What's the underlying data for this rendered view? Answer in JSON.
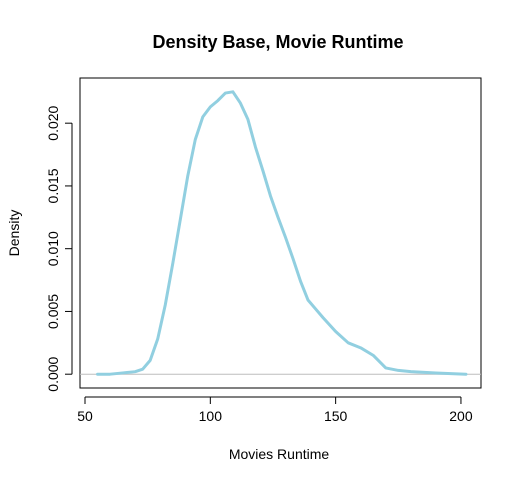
{
  "chart_data": {
    "type": "line",
    "title": "Density Base, Movie Runtime",
    "xlabel": "Movies Runtime",
    "ylabel": "Density",
    "xlim": [
      48,
      208
    ],
    "ylim": [
      -0.0011,
      0.0236
    ],
    "x_ticks": [
      "50",
      "100",
      "150",
      "200"
    ],
    "x_tick_values": [
      50,
      100,
      150,
      200
    ],
    "y_ticks": [
      "0.000",
      "0.005",
      "0.010",
      "0.015",
      "0.020"
    ],
    "y_tick_values": [
      0.0,
      0.005,
      0.01,
      0.015,
      0.02
    ],
    "grid": false,
    "baseline": 0,
    "line_color": "#91cfe0",
    "baseline_color": "#bebebe",
    "series": [
      {
        "x": [
          55,
          60,
          65,
          70,
          73,
          76,
          79,
          82,
          85,
          88,
          91,
          94,
          97,
          100,
          103,
          106,
          109,
          112,
          115,
          118,
          121,
          124,
          127,
          130,
          133,
          136,
          139,
          142,
          145,
          150,
          155,
          160,
          165,
          170,
          175,
          180,
          190,
          202
        ],
        "y": [
          0.0,
          0.0,
          0.0001,
          0.0002,
          0.0004,
          0.0011,
          0.0028,
          0.0055,
          0.0088,
          0.0123,
          0.0158,
          0.0187,
          0.0205,
          0.0213,
          0.0218,
          0.0224,
          0.0225,
          0.0216,
          0.0203,
          0.0181,
          0.0162,
          0.0142,
          0.0125,
          0.0109,
          0.0092,
          0.0074,
          0.0059,
          0.0052,
          0.0045,
          0.0034,
          0.0025,
          0.0021,
          0.0015,
          0.0005,
          0.0003,
          0.0002,
          0.0001,
          0.0
        ]
      }
    ]
  }
}
